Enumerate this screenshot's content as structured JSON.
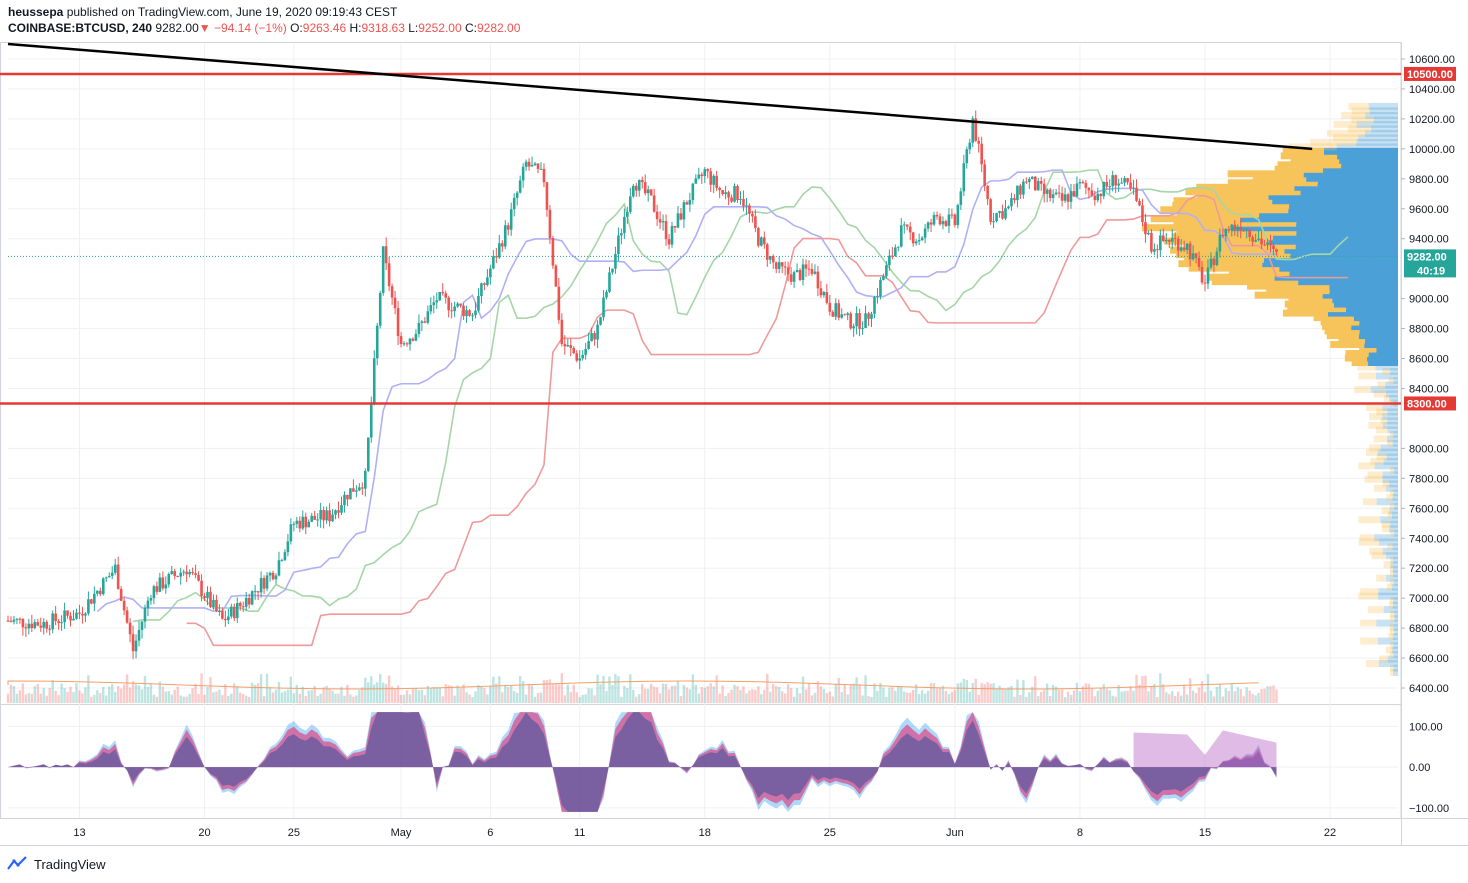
{
  "header": {
    "publisher": "heussepa",
    "published_text": "published on TradingView.com, June 19, 2020 09:19:43 CEST",
    "symbol": "COINBASE:BTCUSD",
    "interval": "240",
    "last": "9282.00",
    "change": "−94.14 (−1%)",
    "o_label": "O:",
    "o": "9263.46",
    "h_label": "H:",
    "h": "9318.63",
    "l_label": "L:",
    "l": "9252.00",
    "c_label": "C:",
    "c": "9282.00"
  },
  "footer": {
    "brand": "TradingView"
  },
  "colors": {
    "up": "#26a69a",
    "down": "#ef5350",
    "resistance": "#e53935",
    "trend": "#000000",
    "vp_up": "#4ba0d8",
    "vp_down": "#f7c45c",
    "cloud": "#c8e6c9",
    "tenkan": "#8c8cf0",
    "kijun": "#e57373"
  },
  "chart_data": [
    {
      "type": "line",
      "title": "",
      "series_kind": "candlestick",
      "xlabel": "",
      "ylabel": "",
      "x_ticks": [
        "13",
        "20",
        "25",
        "May",
        "6",
        "11",
        "18",
        "25",
        "Jun",
        "8",
        "15",
        "22"
      ],
      "y_ticks": [
        "10600.00",
        "10400.00",
        "10200.00",
        "10000.00",
        "9800.00",
        "9600.00",
        "9400.00",
        "9000.00",
        "8800.00",
        "8600.00",
        "8400.00",
        "8000.00",
        "7800.00",
        "7600.00",
        "7400.00",
        "7200.00",
        "7000.00",
        "6800.00",
        "6600.00",
        "6400.00"
      ],
      "ylim": [
        6300,
        10700
      ],
      "last_price": 9282.0,
      "last_price_label": "9282.00",
      "countdown_label": "40:19",
      "horizontal_levels": [
        {
          "value": 10500,
          "label": "10500.00"
        },
        {
          "value": 8300,
          "label": "8300.00"
        }
      ],
      "trendline": {
        "from": [
          "Apr 9",
          10700
        ],
        "to": [
          "Jun 21",
          10000
        ]
      },
      "price_path_approx": [
        [
          "Apr 9",
          6850
        ],
        [
          "Apr 11",
          6830
        ],
        [
          "Apr 13",
          6900
        ],
        [
          "Apr 15",
          7200
        ],
        [
          "Apr 16",
          6650
        ],
        [
          "Apr 17",
          7050
        ],
        [
          "Apr 19",
          7200
        ],
        [
          "Apr 21",
          6850
        ],
        [
          "Apr 22",
          6950
        ],
        [
          "Apr 24",
          7200
        ],
        [
          "Apr 25",
          7500
        ],
        [
          "Apr 27",
          7550
        ],
        [
          "Apr 28",
          7700
        ],
        [
          "Apr 29",
          7800
        ],
        [
          "Apr 30",
          9300
        ],
        [
          "May 1",
          8700
        ],
        [
          "May 2",
          8800
        ],
        [
          "May 3",
          9000
        ],
        [
          "May 5",
          8900
        ],
        [
          "May 6",
          9200
        ],
        [
          "May 7",
          9500
        ],
        [
          "May 8",
          9900
        ],
        [
          "May 9",
          9800
        ],
        [
          "May 10",
          8700
        ],
        [
          "May 11",
          8600
        ],
        [
          "May 12",
          8800
        ],
        [
          "May 13",
          9300
        ],
        [
          "May 14",
          9800
        ],
        [
          "May 15",
          9650
        ],
        [
          "May 16",
          9400
        ],
        [
          "May 17",
          9650
        ],
        [
          "May 18",
          9850
        ],
        [
          "May 19",
          9700
        ],
        [
          "May 20",
          9700
        ],
        [
          "May 21",
          9400
        ],
        [
          "May 22",
          9200
        ],
        [
          "May 23",
          9150
        ],
        [
          "May 24",
          9200
        ],
        [
          "May 25",
          8950
        ],
        [
          "May 26",
          8850
        ],
        [
          "May 27",
          8850
        ],
        [
          "May 28",
          9150
        ],
        [
          "May 29",
          9450
        ],
        [
          "May 30",
          9400
        ],
        [
          "May 31",
          9550
        ],
        [
          "Jun 1",
          9500
        ],
        [
          "Jun 2",
          10200
        ],
        [
          "Jun 3",
          9550
        ],
        [
          "Jun 4",
          9600
        ],
        [
          "Jun 5",
          9800
        ],
        [
          "Jun 6",
          9700
        ],
        [
          "Jun 7",
          9650
        ],
        [
          "Jun 8",
          9750
        ],
        [
          "Jun 9",
          9700
        ],
        [
          "Jun 10",
          9800
        ],
        [
          "Jun 11",
          9700
        ],
        [
          "Jun 12",
          9350
        ],
        [
          "Jun 13",
          9400
        ],
        [
          "Jun 14",
          9350
        ],
        [
          "Jun 15",
          9100
        ],
        [
          "Jun 16",
          9450
        ],
        [
          "Jun 17",
          9500
        ],
        [
          "Jun 18",
          9400
        ],
        [
          "Jun 19",
          9282
        ]
      ]
    },
    {
      "type": "area",
      "title": "",
      "xlabel": "",
      "ylabel": "",
      "y_ticks": [
        "100.00",
        "0.00",
        "−100.00"
      ],
      "ylim": [
        -125,
        150
      ]
    }
  ]
}
